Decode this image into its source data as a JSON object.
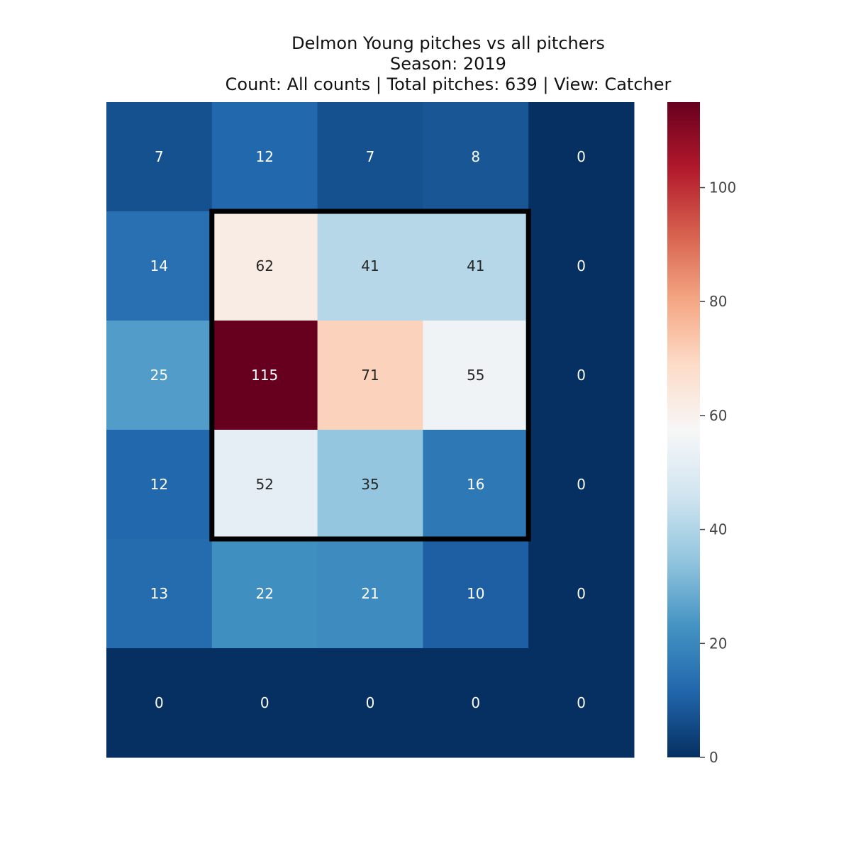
{
  "chart_data": {
    "type": "heatmap",
    "title": "Delmon Young pitches vs all pitchers",
    "subtitle_lines": [
      "Season: 2019",
      "Count: All counts | Total pitches: 639 | View: Catcher"
    ],
    "rows": 6,
    "cols": 5,
    "values": [
      [
        7,
        12,
        7,
        8,
        0
      ],
      [
        14,
        62,
        41,
        41,
        0
      ],
      [
        25,
        115,
        71,
        55,
        0
      ],
      [
        12,
        52,
        35,
        16,
        0
      ],
      [
        13,
        22,
        21,
        10,
        0
      ],
      [
        0,
        0,
        0,
        0,
        0
      ]
    ],
    "strike_zone": {
      "row_start": 1,
      "row_end": 3,
      "col_start": 1,
      "col_end": 3
    },
    "colormap": "RdBu_r",
    "vmin": 0,
    "vmax": 115,
    "colorbar_ticks": [
      0,
      20,
      40,
      60,
      80,
      100
    ],
    "colorbar_tick_labels": [
      "0",
      "20",
      "40",
      "60",
      "80",
      "100"
    ],
    "grid": false,
    "legend": "colorbar-right"
  }
}
